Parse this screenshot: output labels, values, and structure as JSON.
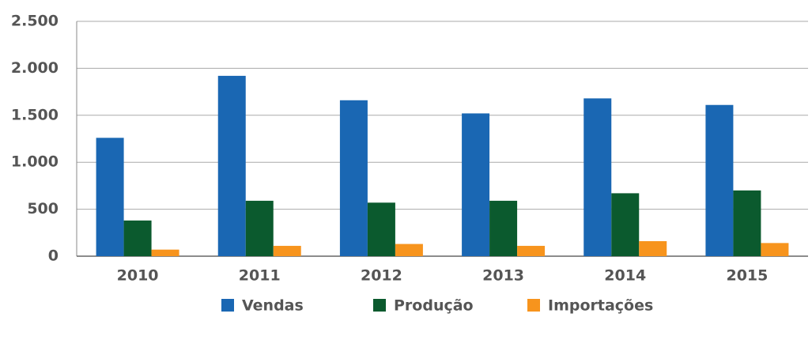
{
  "chart_data": {
    "type": "bar",
    "categories": [
      "2010",
      "2011",
      "2012",
      "2013",
      "2014",
      "2015"
    ],
    "series": [
      {
        "name": "Vendas",
        "color": "#1a67b3",
        "values": [
          1260,
          1920,
          1660,
          1520,
          1680,
          1610
        ]
      },
      {
        "name": "Produção",
        "color": "#0b5a2e",
        "values": [
          380,
          590,
          570,
          590,
          670,
          700
        ]
      },
      {
        "name": "Importações",
        "color": "#f7941d",
        "values": [
          70,
          110,
          130,
          110,
          160,
          140
        ]
      }
    ],
    "ylim": [
      0,
      2500
    ],
    "yticks": [
      0,
      500,
      {
        "value": 1000,
        "label": "1.000"
      },
      {
        "value": 1500,
        "label": "1.500"
      },
      {
        "value": 2000,
        "label": "2.000"
      },
      {
        "value": 2500,
        "label": "2.500"
      }
    ],
    "grid": true,
    "legend": "bottom"
  }
}
